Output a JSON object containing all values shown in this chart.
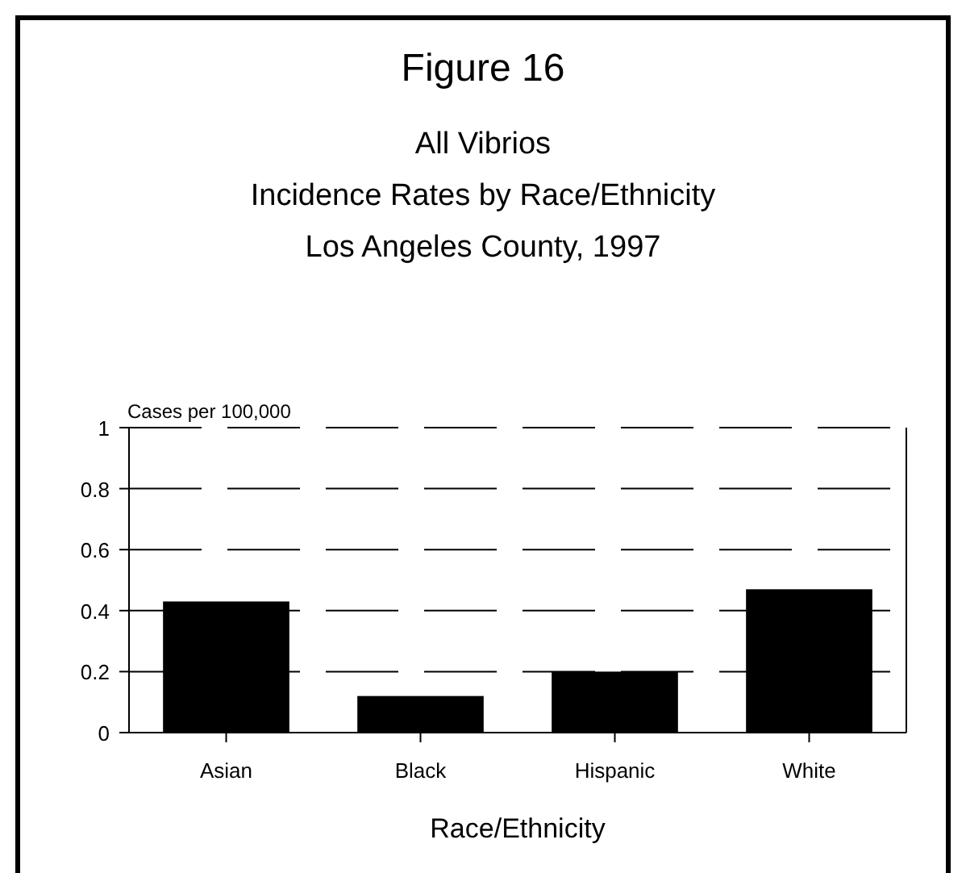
{
  "chart_data": {
    "type": "bar",
    "title": "Figure 16",
    "subtitle": "All Vibrios\nIncidence Rates by Race/Ethnicity\nLos Angeles County, 1997",
    "xlabel": "Race/Ethnicity",
    "ylabel": "Cases per 100,000",
    "categories": [
      "Asian",
      "Black",
      "Hispanic",
      "White"
    ],
    "values": [
      0.43,
      0.12,
      0.2,
      0.47
    ],
    "color": "#000000",
    "ylim": [
      0,
      1
    ],
    "yticks": [
      0,
      0.2,
      0.4,
      0.6,
      0.8,
      1
    ],
    "grid": "y",
    "line_style": "dashed"
  }
}
